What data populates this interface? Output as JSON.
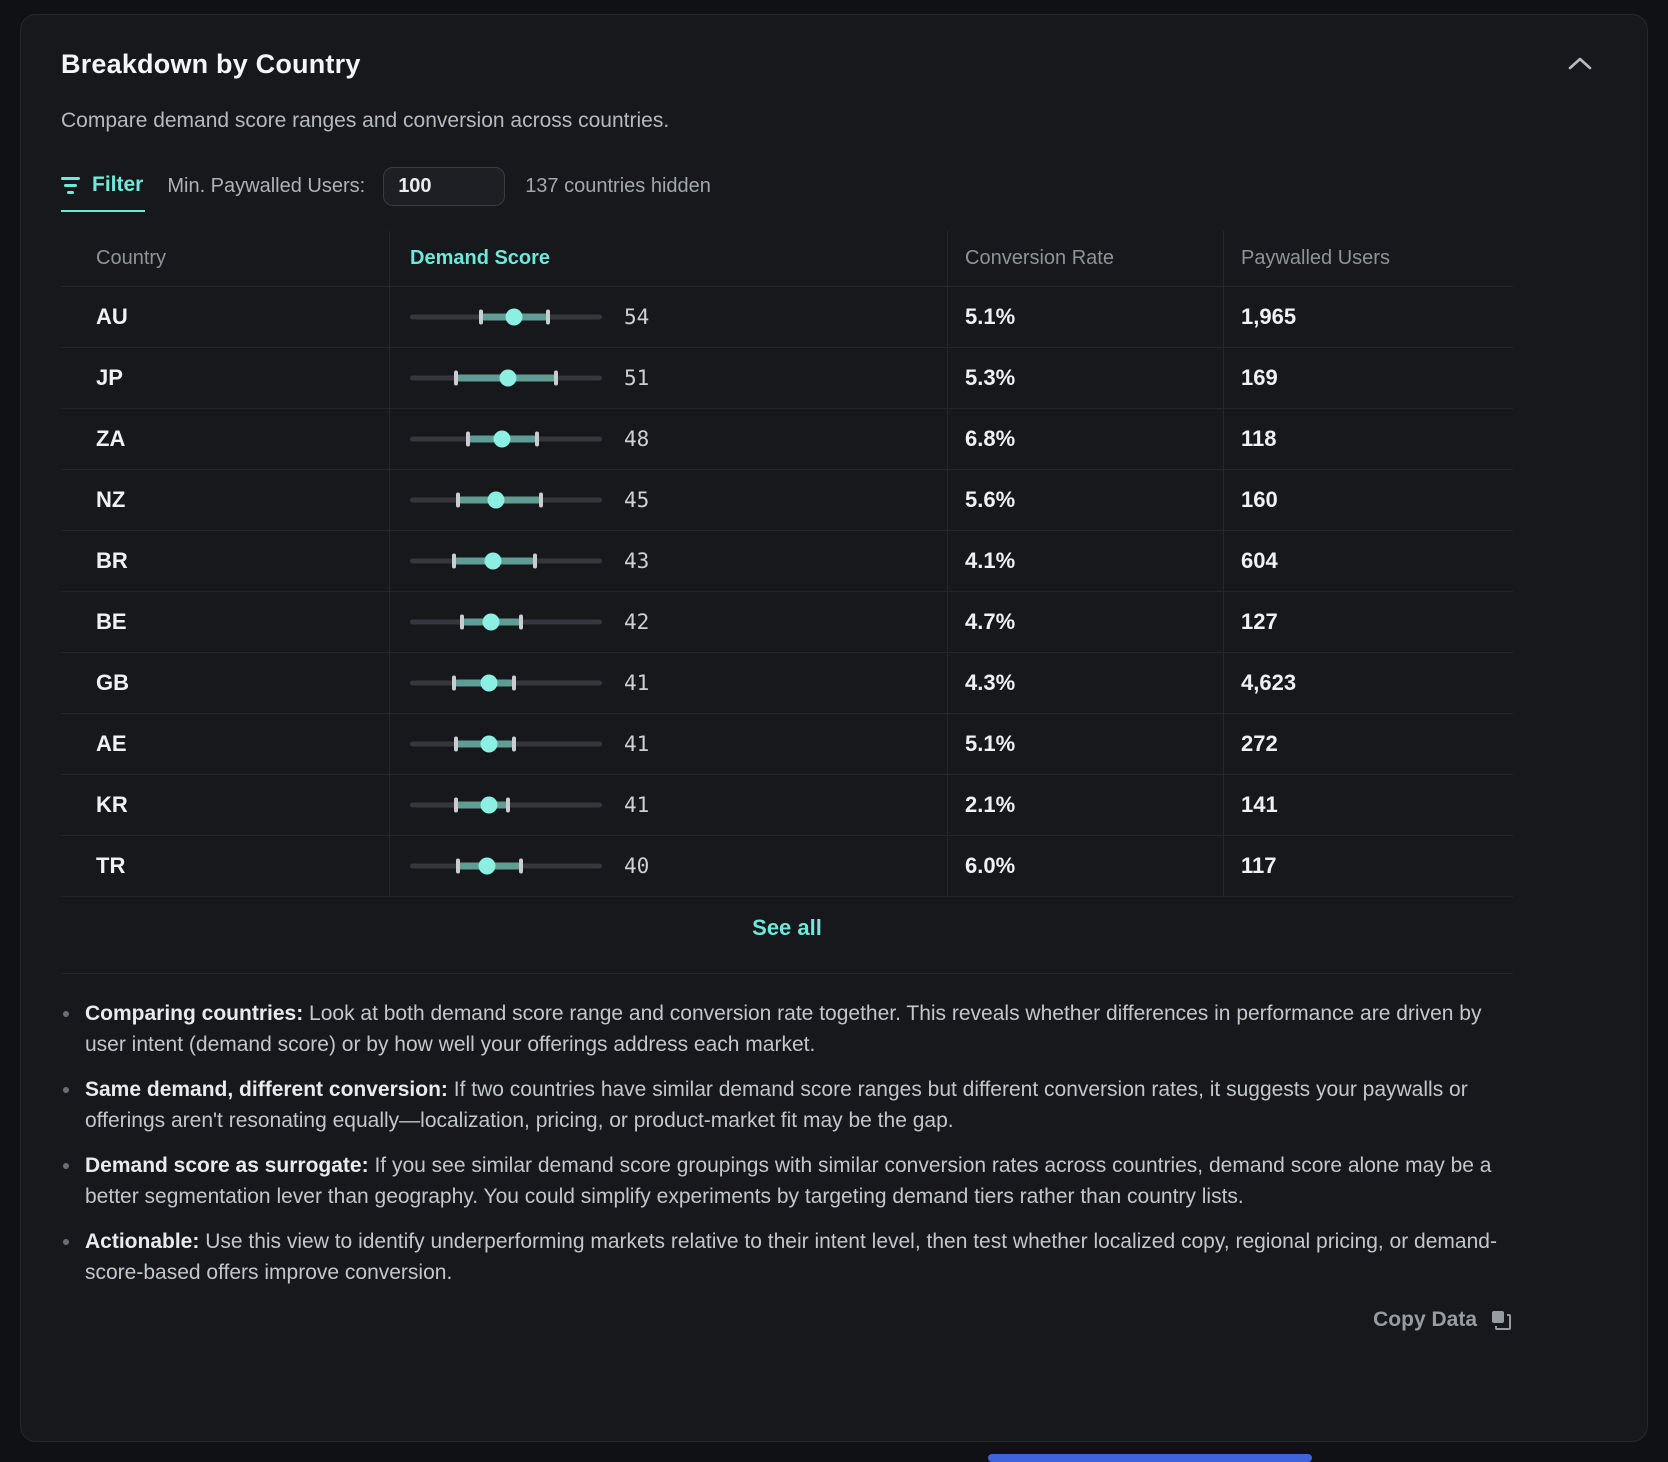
{
  "card": {
    "title": "Breakdown by Country",
    "subtitle": "Compare demand score ranges and conversion across countries.",
    "collapse_icon": "chevron-up-icon",
    "filter": {
      "tab_label": "Filter",
      "tab_icon": "filter-lines-icon",
      "min_users_label": "Min. Paywalled Users:",
      "input_value": "100",
      "hidden_count_text": "137 countries hidden"
    },
    "table": {
      "columns": [
        "Country",
        "Demand Score",
        "Conversion Rate",
        "Paywalled Users"
      ],
      "rows": [
        {
          "country": "AU",
          "score": 54,
          "range_min": 37,
          "range_max": 72,
          "conversion": "5.1%",
          "paywalled": "1,965"
        },
        {
          "country": "JP",
          "score": 51,
          "range_min": 24,
          "range_max": 76,
          "conversion": "5.3%",
          "paywalled": "169"
        },
        {
          "country": "ZA",
          "score": 48,
          "range_min": 30,
          "range_max": 66,
          "conversion": "6.8%",
          "paywalled": "118"
        },
        {
          "country": "NZ",
          "score": 45,
          "range_min": 25,
          "range_max": 68,
          "conversion": "5.6%",
          "paywalled": "160"
        },
        {
          "country": "BR",
          "score": 43,
          "range_min": 23,
          "range_max": 65,
          "conversion": "4.1%",
          "paywalled": "604"
        },
        {
          "country": "BE",
          "score": 42,
          "range_min": 27,
          "range_max": 58,
          "conversion": "4.7%",
          "paywalled": "127"
        },
        {
          "country": "GB",
          "score": 41,
          "range_min": 23,
          "range_max": 54,
          "conversion": "4.3%",
          "paywalled": "4,623"
        },
        {
          "country": "AE",
          "score": 41,
          "range_min": 24,
          "range_max": 54,
          "conversion": "5.1%",
          "paywalled": "272"
        },
        {
          "country": "KR",
          "score": 41,
          "range_min": 24,
          "range_max": 51,
          "conversion": "2.1%",
          "paywalled": "141"
        },
        {
          "country": "TR",
          "score": 40,
          "range_min": 25,
          "range_max": 58,
          "conversion": "6.0%",
          "paywalled": "117"
        }
      ]
    },
    "see_all_label": "See all",
    "notes": [
      {
        "lead": "Comparing countries:",
        "text": "Look at both demand score range and conversion rate together. This reveals whether differences in performance are driven by user intent (demand score) or by how well your offerings address each market."
      },
      {
        "lead": "Same demand, different conversion:",
        "text": "If two countries have similar demand score ranges but different conversion rates, it suggests your paywalls or offerings aren't resonating equally—localization, pricing, or product-market fit may be the gap."
      },
      {
        "lead": "Demand score as surrogate:",
        "text": "If you see similar demand score groupings with similar conversion rates across countries, demand score alone may be a better segmentation lever than geography. You could simplify experiments by targeting demand tiers rather than country lists."
      },
      {
        "lead": "Actionable:",
        "text": "Use this view to identify underperforming markets relative to their intent level, then test whether localized copy, regional pricing, or demand-score-based offers improve conversion."
      }
    ],
    "copy_button_label": "Copy Data",
    "copy_button_icon": "copy-icon"
  },
  "colors": {
    "accent_teal": "#70e8da",
    "range_bar": "#5e9c94",
    "score_dot": "#8bf0e2",
    "bottom_bar_blue": "#3e63dd",
    "card_background": "#17181c"
  },
  "chart_data": {
    "type": "range_dot",
    "title": "Demand Score by Country",
    "categories": [
      "AU",
      "JP",
      "ZA",
      "NZ",
      "BR",
      "BE",
      "GB",
      "AE",
      "KR",
      "TR"
    ],
    "series": [
      {
        "name": "demand_score",
        "values": [
          54,
          51,
          48,
          45,
          43,
          42,
          41,
          41,
          41,
          40
        ]
      },
      {
        "name": "range_min",
        "values": [
          37,
          24,
          30,
          25,
          23,
          27,
          23,
          24,
          24,
          25
        ]
      },
      {
        "name": "range_max",
        "values": [
          72,
          76,
          66,
          68,
          65,
          58,
          54,
          54,
          51,
          58
        ]
      }
    ],
    "xlim": [
      0,
      100
    ],
    "grid": false,
    "legend": false
  }
}
